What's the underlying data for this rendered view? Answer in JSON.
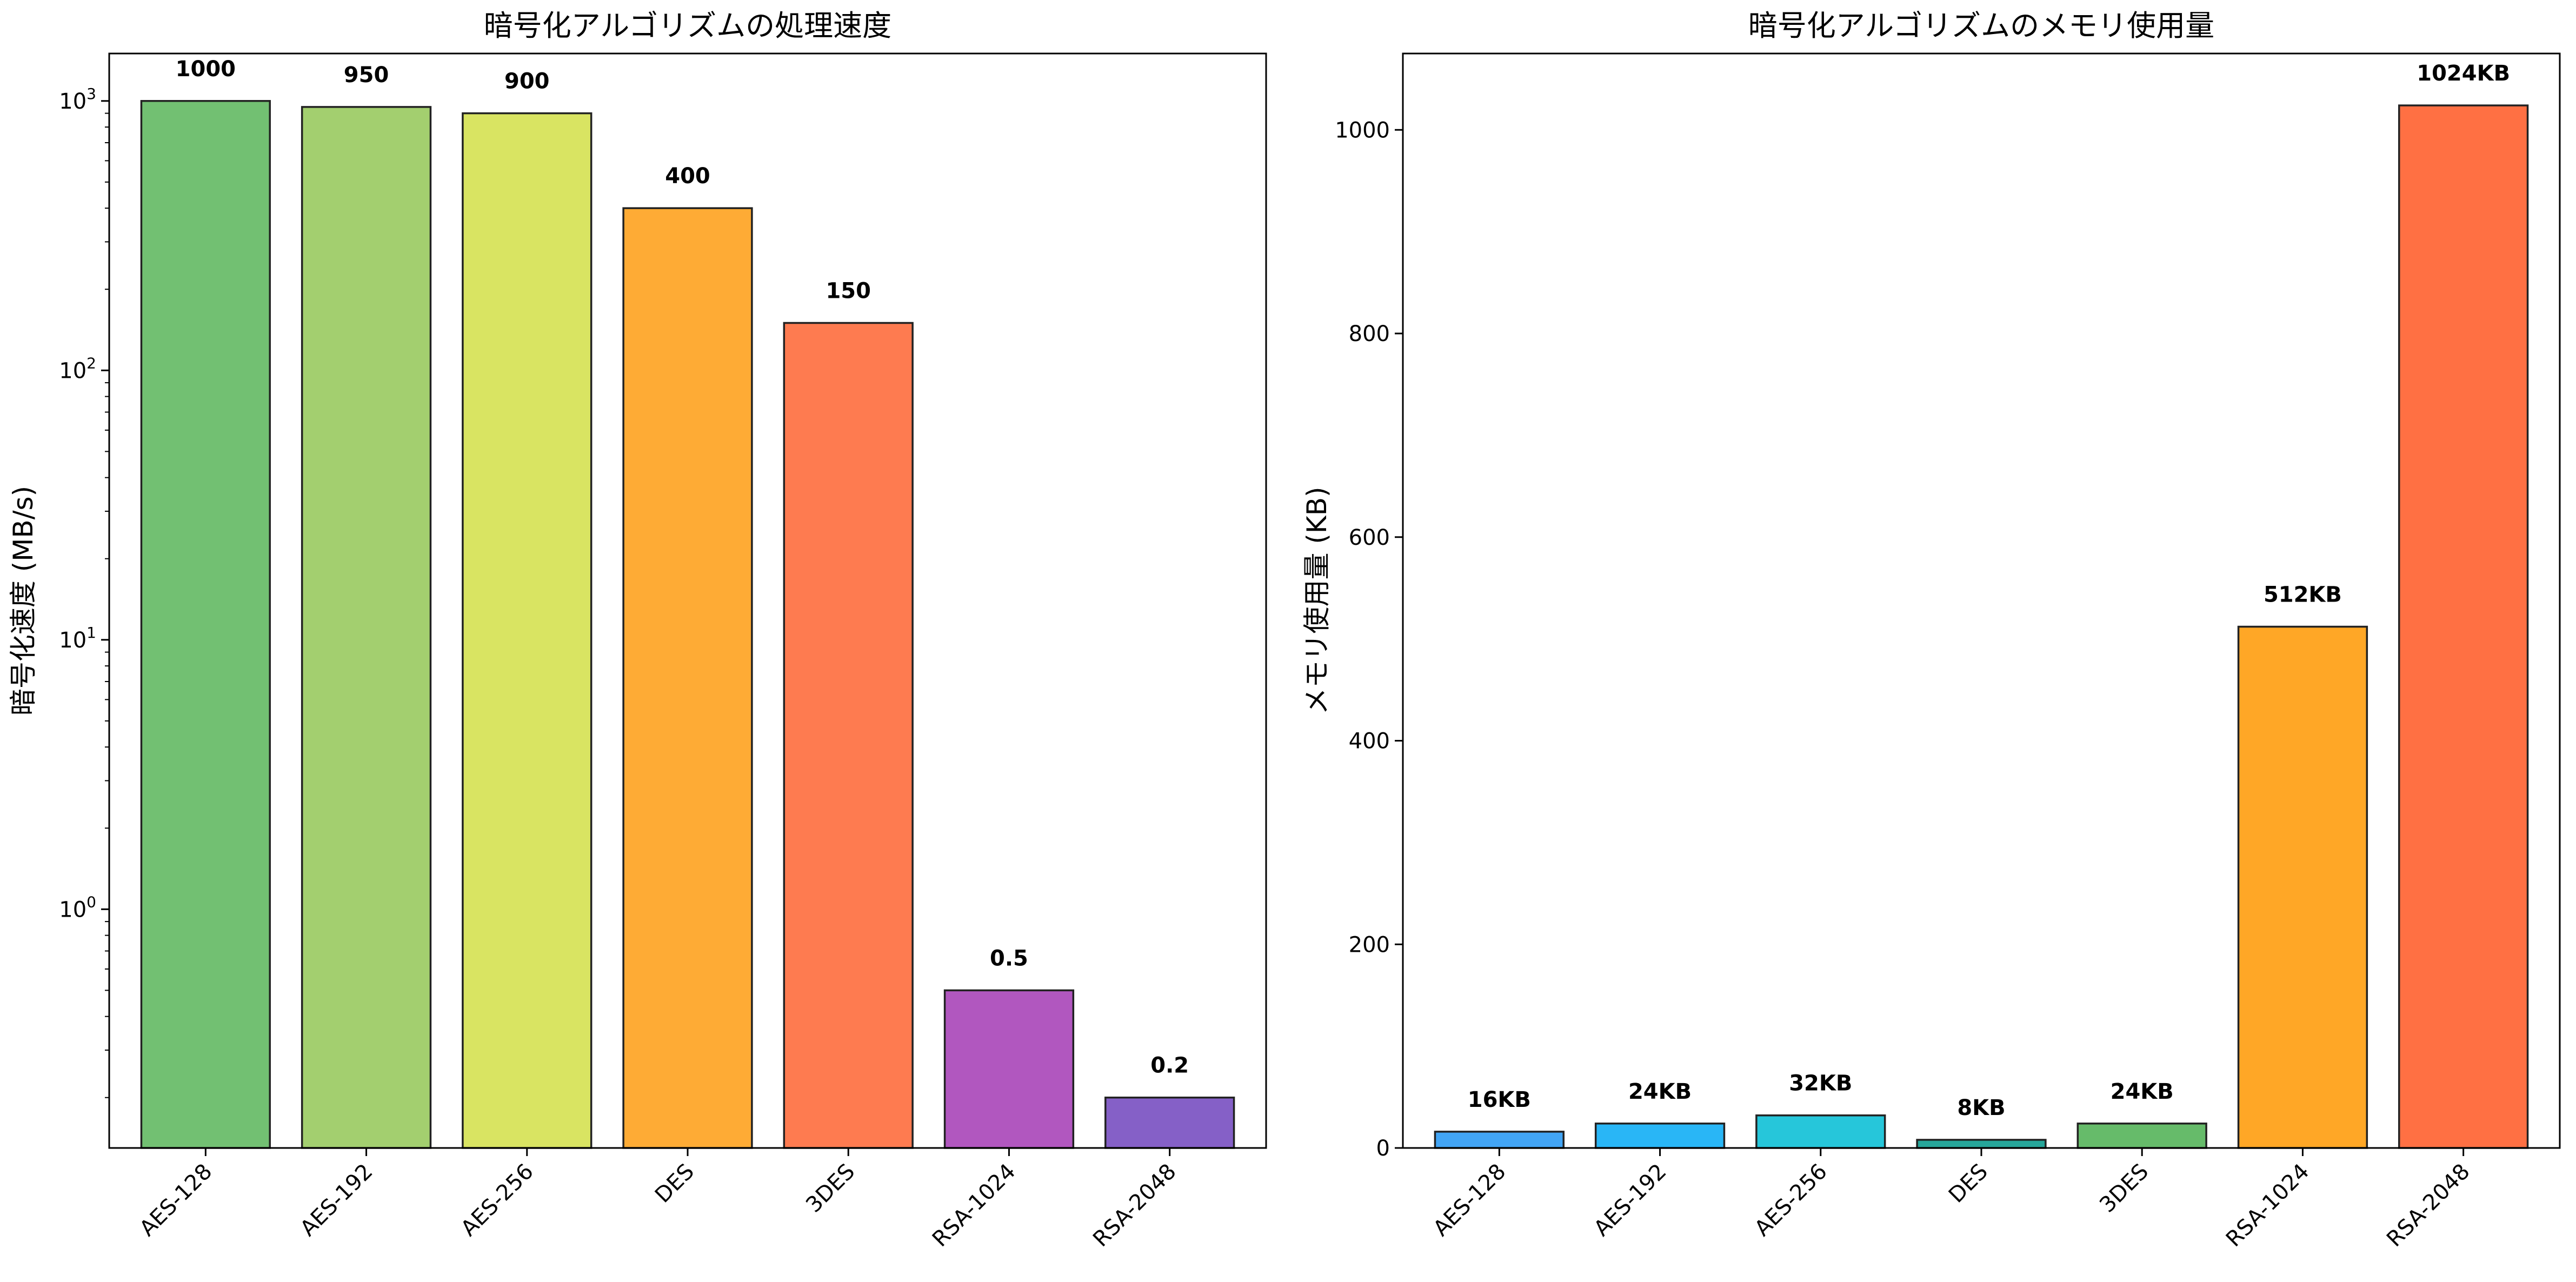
{
  "chart_data": [
    {
      "type": "bar",
      "title": "暗号化アルゴリズムの処理速度",
      "xlabel": "",
      "ylabel": "暗号化速度 (MB/s)",
      "yscale": "log",
      "ylim": [
        0.13,
        1500
      ],
      "yticks": [
        {
          "value": 1,
          "base": "10",
          "exp": "0"
        },
        {
          "value": 10,
          "base": "10",
          "exp": "1"
        },
        {
          "value": 100,
          "base": "10",
          "exp": "2"
        },
        {
          "value": 1000,
          "base": "10",
          "exp": "3"
        }
      ],
      "categories": [
        "AES-128",
        "AES-192",
        "AES-256",
        "DES",
        "3DES",
        "RSA-1024",
        "RSA-2048"
      ],
      "values": [
        1000,
        950,
        900,
        400,
        150,
        0.5,
        0.2
      ],
      "data_labels": [
        "1000",
        "950",
        "900",
        "400",
        "150",
        "0.5",
        "0.2"
      ],
      "colors": [
        "#72c072",
        "#a3cf6f",
        "#d9e462",
        "#feab35",
        "#fe7b50",
        "#b157bf",
        "#8560c7"
      ],
      "grid": false,
      "legend": "none"
    },
    {
      "type": "bar",
      "title": "暗号化アルゴリズムのメモリ使用量",
      "xlabel": "",
      "ylabel": "メモリ使用量 (KB)",
      "yscale": "linear",
      "ylim": [
        0,
        1075
      ],
      "yticks": [
        {
          "value": 0,
          "label": "0"
        },
        {
          "value": 200,
          "label": "200"
        },
        {
          "value": 400,
          "label": "400"
        },
        {
          "value": 600,
          "label": "600"
        },
        {
          "value": 800,
          "label": "800"
        },
        {
          "value": 1000,
          "label": "1000"
        }
      ],
      "categories": [
        "AES-128",
        "AES-192",
        "AES-256",
        "DES",
        "3DES",
        "RSA-1024",
        "RSA-2048"
      ],
      "values": [
        16,
        24,
        32,
        8,
        24,
        512,
        1024
      ],
      "data_labels": [
        "16KB",
        "24KB",
        "32KB",
        "8KB",
        "24KB",
        "512KB",
        "1024KB"
      ],
      "colors": [
        "#42a5f5",
        "#29b6f6",
        "#26c6da",
        "#26a69a",
        "#66bb6a",
        "#ffa726",
        "#ff7043"
      ],
      "grid": false,
      "legend": "none"
    }
  ]
}
